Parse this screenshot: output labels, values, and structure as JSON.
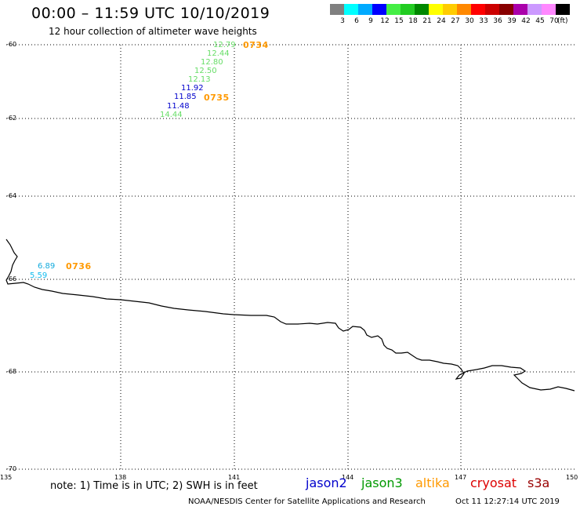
{
  "header": {
    "title": "00:00 – 11:59 UTC 10/10/2019",
    "subtitle": "12 hour collection of altimeter wave heights"
  },
  "color_scale": {
    "unit": "(ft)",
    "bins": [
      {
        "label": "3",
        "color": "#808080"
      },
      {
        "label": "6",
        "color": "#00ffff"
      },
      {
        "label": "9",
        "color": "#00aaff"
      },
      {
        "label": "12",
        "color": "#0000ff"
      },
      {
        "label": "15",
        "color": "#44ee44"
      },
      {
        "label": "18",
        "color": "#22cc22"
      },
      {
        "label": "21",
        "color": "#008800"
      },
      {
        "label": "24",
        "color": "#ffff00"
      },
      {
        "label": "27",
        "color": "#ffcc00"
      },
      {
        "label": "30",
        "color": "#ff8800"
      },
      {
        "label": "33",
        "color": "#ff0000"
      },
      {
        "label": "36",
        "color": "#cc0000"
      },
      {
        "label": "39",
        "color": "#880000"
      },
      {
        "label": "42",
        "color": "#aa00aa"
      },
      {
        "label": "45",
        "color": "#cc99ff"
      },
      {
        "label": "70",
        "color": "#ff88ff"
      },
      {
        "label": "",
        "color": "#000000"
      }
    ]
  },
  "axes": {
    "lat_labels": [
      "-60",
      "-62",
      "-64",
      "-66",
      "-68",
      "-70"
    ],
    "lon_labels": [
      "135",
      "138",
      "141",
      "144",
      "147",
      "150"
    ]
  },
  "observations": [
    {
      "text": "12.79",
      "color": "#66dd66"
    },
    {
      "text": "12.44",
      "color": "#66dd66"
    },
    {
      "text": "12.80",
      "color": "#66dd66"
    },
    {
      "text": "12.50",
      "color": "#66dd66"
    },
    {
      "text": "12.13",
      "color": "#66dd66"
    },
    {
      "text": "11.92",
      "color": "#0000cc"
    },
    {
      "text": "11.85",
      "color": "#0000cc"
    },
    {
      "text": "11.48",
      "color": "#0000cc"
    },
    {
      "text": "14.44",
      "color": "#66dd66"
    },
    {
      "text": "6.89",
      "color": "#11aadd"
    },
    {
      "text": "5.59",
      "color": "#11bbee"
    }
  ],
  "time_labels": [
    {
      "text": "0734",
      "color": "#ff9900"
    },
    {
      "text": "0735",
      "color": "#ff9900"
    },
    {
      "text": "0736",
      "color": "#ff9900"
    }
  ],
  "footer": {
    "note": "note: 1) Time is in UTC; 2) SWH is in feet",
    "satellites": [
      {
        "name": "jason2",
        "color": "#0000cc"
      },
      {
        "name": "jason3",
        "color": "#009900"
      },
      {
        "name": "altika",
        "color": "#ff9900"
      },
      {
        "name": "cryosat",
        "color": "#dd0000"
      },
      {
        "name": "s3a",
        "color": "#990000"
      }
    ],
    "credit": "NOAA/NESDIS Center for Satellite Applications and Research",
    "timestamp": "Oct 11 12:27:14 UTC 2019"
  }
}
